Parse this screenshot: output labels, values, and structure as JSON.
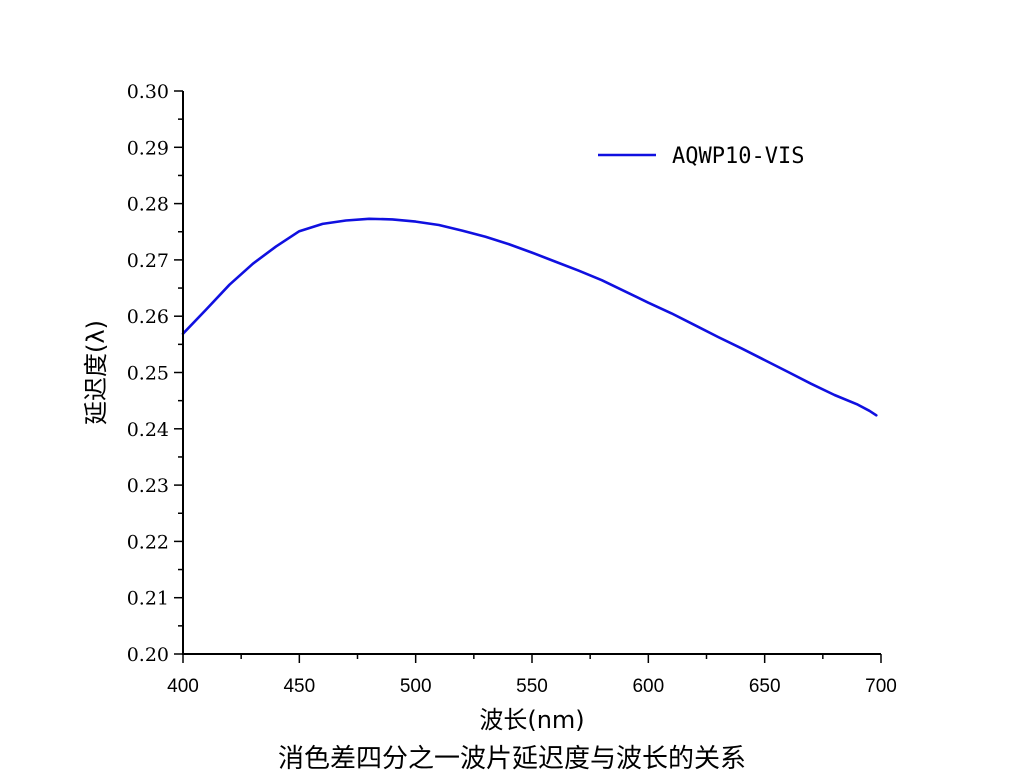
{
  "caption": "消色差四分之一波片延迟度与波长的关系",
  "chart_data": {
    "type": "line",
    "xlabel": "波长(nm)",
    "ylabel": "延迟度(λ)",
    "xlim": [
      400,
      700
    ],
    "ylim": [
      0.2,
      0.3
    ],
    "x_ticks": [
      400,
      450,
      500,
      550,
      600,
      650,
      700
    ],
    "x_tick_labels": [
      "400",
      "450",
      "500",
      "550",
      "600",
      "650",
      "700"
    ],
    "y_ticks": [
      0.2,
      0.21,
      0.22,
      0.23,
      0.24,
      0.25,
      0.26,
      0.27,
      0.28,
      0.29,
      0.3
    ],
    "y_tick_labels": [
      "0.20",
      "0.21",
      "0.22",
      "0.23",
      "0.24",
      "0.25",
      "0.26",
      "0.27",
      "0.28",
      "0.29",
      "0.30"
    ],
    "grid": false,
    "legend_position": "top-right",
    "series": [
      {
        "name": "AQWP10-VIS",
        "color": "#1010e0",
        "x": [
          400,
          410,
          420,
          430,
          440,
          450,
          460,
          470,
          480,
          490,
          500,
          510,
          520,
          530,
          540,
          550,
          560,
          570,
          580,
          590,
          600,
          610,
          620,
          630,
          640,
          650,
          660,
          670,
          680,
          690,
          695,
          698
        ],
        "y": [
          0.2569,
          0.2612,
          0.2656,
          0.2693,
          0.2724,
          0.2751,
          0.2764,
          0.277,
          0.2773,
          0.2772,
          0.2768,
          0.2762,
          0.2752,
          0.2741,
          0.2728,
          0.2713,
          0.2697,
          0.2681,
          0.2664,
          0.2644,
          0.2624,
          0.2605,
          0.2584,
          0.2563,
          0.2543,
          0.2522,
          0.2501,
          0.248,
          0.246,
          0.2443,
          0.2432,
          0.2424
        ]
      }
    ]
  }
}
